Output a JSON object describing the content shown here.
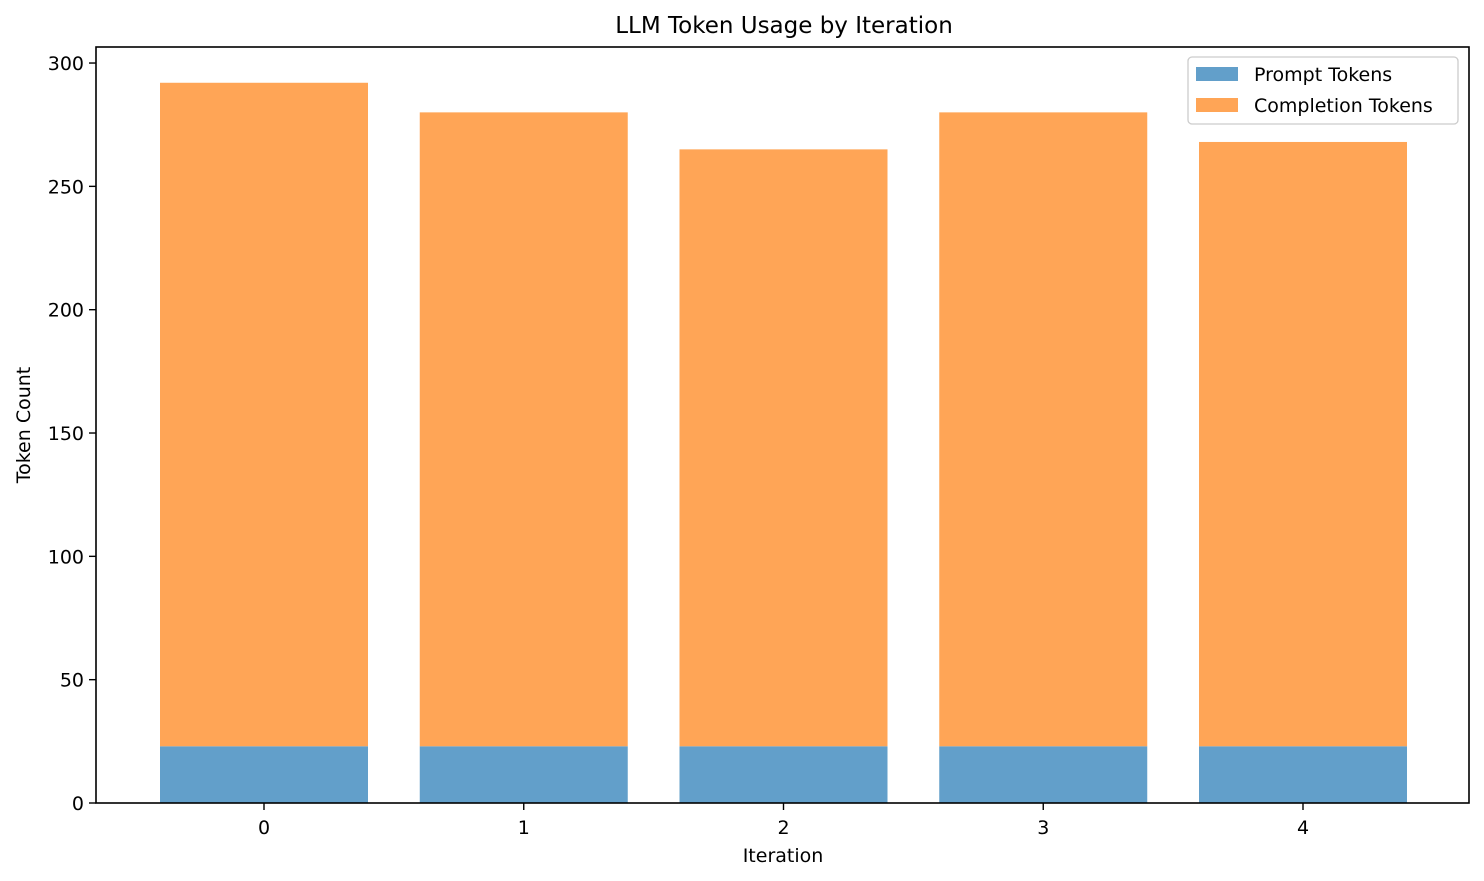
{
  "chart_data": {
    "type": "bar",
    "stacked": true,
    "title": "LLM Token Usage by Iteration",
    "xlabel": "Iteration",
    "ylabel": "Token Count",
    "categories": [
      "0",
      "1",
      "2",
      "3",
      "4"
    ],
    "series": [
      {
        "name": "Prompt Tokens",
        "values": [
          23,
          23,
          23,
          23,
          23
        ],
        "color": "#629fca"
      },
      {
        "name": "Completion Tokens",
        "values": [
          269,
          257,
          242,
          257,
          245
        ],
        "color": "#ffa556"
      }
    ],
    "ylim": [
      0,
      306.5
    ],
    "yticks": [
      "0",
      "50",
      "100",
      "150",
      "200",
      "250",
      "300"
    ],
    "grid": false,
    "legend_position": "top-right"
  }
}
